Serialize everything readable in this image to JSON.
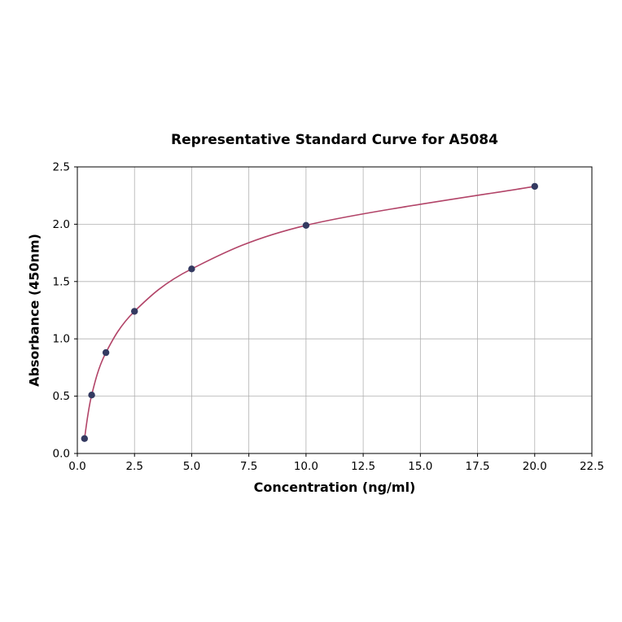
{
  "chart_data": {
    "type": "scatter",
    "title": "Representative Standard Curve for A5084",
    "xlabel": "Concentration (ng/ml)",
    "ylabel": "Absorbance (450nm)",
    "xlim": [
      0,
      22.5
    ],
    "ylim": [
      0,
      2.5
    ],
    "xticks": [
      0.0,
      2.5,
      5.0,
      7.5,
      10.0,
      12.5,
      15.0,
      17.5,
      20.0,
      22.5
    ],
    "yticks": [
      0.0,
      0.5,
      1.0,
      1.5,
      2.0,
      2.5
    ],
    "tick_format_decimals": 1,
    "grid": true,
    "grid_color": "#b0b0b0",
    "axis_color": "#000000",
    "legend": "none",
    "series": [
      {
        "name": "standard-curve",
        "x": [
          0.3125,
          0.625,
          1.25,
          2.5,
          5.0,
          10.0,
          20.0
        ],
        "y": [
          0.13,
          0.51,
          0.88,
          1.24,
          1.61,
          1.99,
          2.33
        ],
        "line_color": "#b24468",
        "marker_color": "#343a61",
        "marker": "circle"
      }
    ]
  }
}
